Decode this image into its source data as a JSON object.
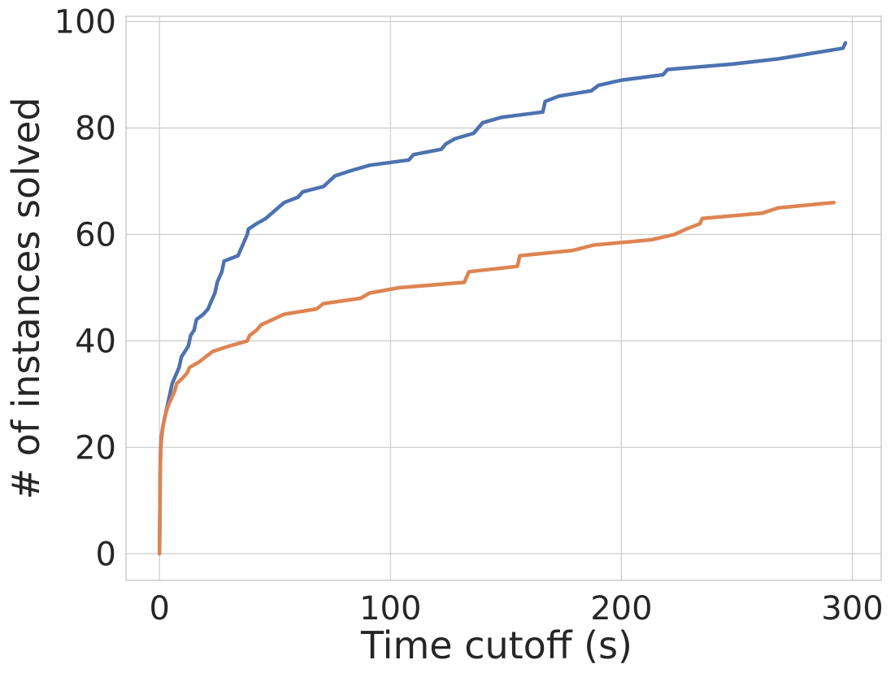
{
  "chart_data": {
    "type": "line",
    "title": "",
    "xlabel": "Time cutoff (s)",
    "ylabel": "# of instances solved",
    "xlim": [
      -14.5,
      312.5
    ],
    "ylim": [
      -5,
      101
    ],
    "xticks": [
      0,
      100,
      200,
      300
    ],
    "yticks": [
      0,
      20,
      40,
      60,
      80,
      100
    ],
    "xtick_labels": [
      "0",
      "100",
      "200",
      "300"
    ],
    "ytick_labels": [
      "0",
      "20",
      "40",
      "60",
      "80",
      "100"
    ],
    "grid": true,
    "legend": "none",
    "series": [
      {
        "color": "#4c72b0",
        "points": [
          [
            0,
            0
          ],
          [
            0.1,
            5
          ],
          [
            0.2,
            10
          ],
          [
            0.3,
            15
          ],
          [
            0.5,
            20
          ],
          [
            0.8,
            22
          ],
          [
            1.5,
            24
          ],
          [
            2.5,
            26
          ],
          [
            3.5,
            28
          ],
          [
            4.5,
            30
          ],
          [
            5.5,
            32
          ],
          [
            6.5,
            33
          ],
          [
            7.5,
            34
          ],
          [
            8.5,
            35
          ],
          [
            9.5,
            37
          ],
          [
            11,
            38
          ],
          [
            12.5,
            39
          ],
          [
            13.5,
            41
          ],
          [
            15,
            42
          ],
          [
            16,
            44
          ],
          [
            19,
            45
          ],
          [
            21,
            46
          ],
          [
            22,
            47
          ],
          [
            23,
            48
          ],
          [
            24,
            49
          ],
          [
            25,
            51
          ],
          [
            27,
            53
          ],
          [
            28,
            55
          ],
          [
            34,
            56
          ],
          [
            35,
            57
          ],
          [
            36,
            58
          ],
          [
            38,
            60
          ],
          [
            38.5,
            61
          ],
          [
            42,
            62
          ],
          [
            46,
            63
          ],
          [
            50,
            64.5
          ],
          [
            54,
            66
          ],
          [
            60,
            67
          ],
          [
            62,
            68
          ],
          [
            71,
            69
          ],
          [
            76,
            71
          ],
          [
            83,
            72
          ],
          [
            91,
            73
          ],
          [
            108,
            74
          ],
          [
            110,
            75
          ],
          [
            122,
            76
          ],
          [
            124,
            77
          ],
          [
            128,
            78
          ],
          [
            136,
            79
          ],
          [
            138,
            80
          ],
          [
            140,
            81
          ],
          [
            148,
            82
          ],
          [
            166,
            83
          ],
          [
            167,
            85
          ],
          [
            173,
            86
          ],
          [
            187,
            87
          ],
          [
            190,
            88
          ],
          [
            200,
            89
          ],
          [
            218,
            90
          ],
          [
            220,
            91
          ],
          [
            248,
            92
          ],
          [
            268,
            93
          ],
          [
            296,
            95
          ],
          [
            297,
            96
          ]
        ]
      },
      {
        "color": "#dd8452",
        "points": [
          [
            0,
            0
          ],
          [
            0.1,
            5
          ],
          [
            0.2,
            10
          ],
          [
            0.3,
            15
          ],
          [
            0.6,
            20
          ],
          [
            1,
            22
          ],
          [
            1.5,
            24
          ],
          [
            2.5,
            26
          ],
          [
            3.5,
            27.5
          ],
          [
            5,
            29
          ],
          [
            6.5,
            30.5
          ],
          [
            7.5,
            32
          ],
          [
            10,
            33
          ],
          [
            12,
            34
          ],
          [
            13,
            35
          ],
          [
            17,
            36
          ],
          [
            20,
            37
          ],
          [
            23,
            38
          ],
          [
            30,
            39
          ],
          [
            38,
            40
          ],
          [
            39,
            41
          ],
          [
            42,
            42
          ],
          [
            44,
            43
          ],
          [
            49,
            44
          ],
          [
            54,
            45
          ],
          [
            68,
            46
          ],
          [
            71,
            47
          ],
          [
            87,
            48
          ],
          [
            91,
            49
          ],
          [
            104,
            50
          ],
          [
            132,
            51
          ],
          [
            133,
            52
          ],
          [
            134,
            53
          ],
          [
            155,
            54
          ],
          [
            156,
            56
          ],
          [
            179,
            57
          ],
          [
            188,
            58
          ],
          [
            213,
            59
          ],
          [
            223,
            60
          ],
          [
            228,
            61
          ],
          [
            234,
            62
          ],
          [
            235,
            63
          ],
          [
            261,
            64
          ],
          [
            268,
            65
          ],
          [
            292,
            66
          ]
        ]
      }
    ]
  }
}
